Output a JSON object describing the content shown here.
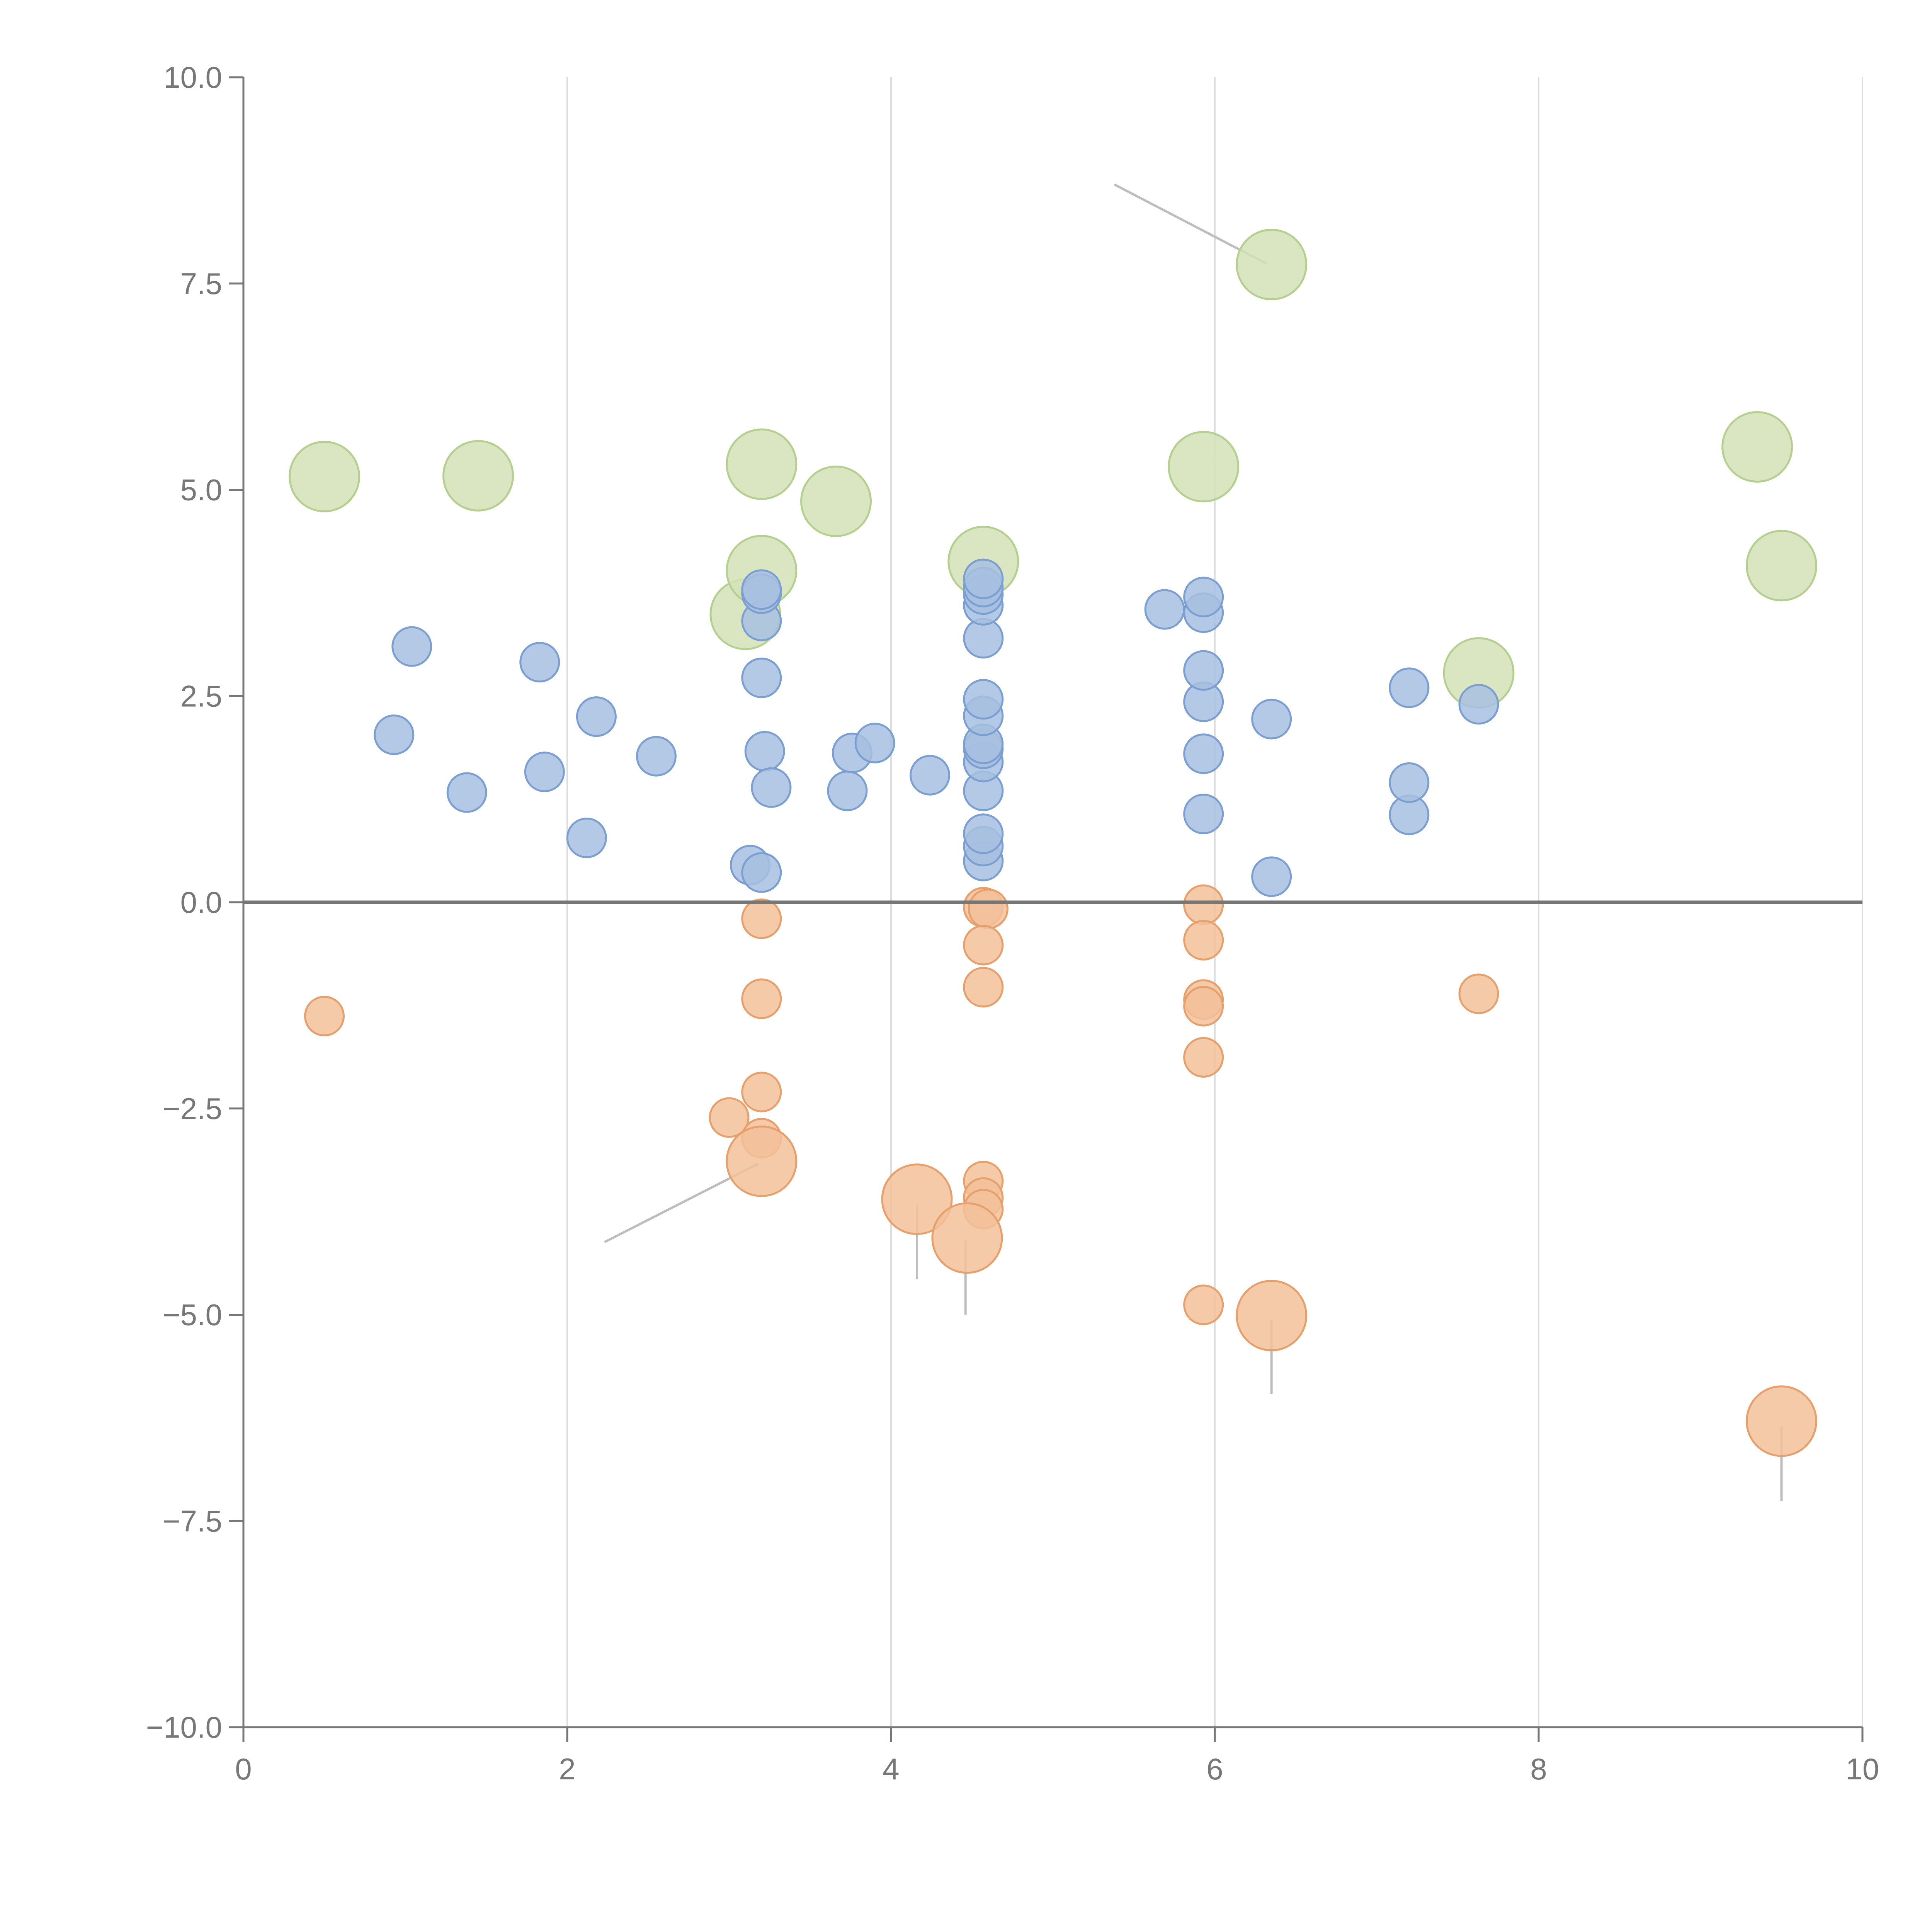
{
  "chart_data": {
    "type": "scatter",
    "title": "",
    "xlabel": "",
    "ylabel": "",
    "xlim": [
      0,
      10
    ],
    "ylim": [
      -10,
      10
    ],
    "grid": {
      "x": true,
      "y": false
    },
    "legend": "none",
    "x_ticks": [
      0,
      2,
      4,
      6,
      8,
      10
    ],
    "x_tick_labels": [
      "0",
      "2",
      "4",
      "6",
      "8",
      "10"
    ],
    "y_ticks": [
      10,
      7.5,
      5,
      2.5,
      0,
      -2.5,
      -5,
      -7.5,
      -10
    ],
    "y_tick_labels": [
      "10.0",
      "7.5",
      "5.0",
      "2.5",
      "0.0",
      "−2.5",
      "−5.0",
      "−7.5",
      "−10.0"
    ],
    "colors": {
      "blue_fill": "#a7bfe0",
      "blue_stroke": "#7c9fd1",
      "orange_fill": "#f2c19a",
      "orange_stroke": "#e6a06b",
      "green_fill": "#d3e2b6",
      "green_stroke": "#b5cf8e",
      "axis": "#777777",
      "grid": "#dddddd"
    },
    "series": [
      {
        "name": "blue",
        "fill": "#a7bfe0",
        "stroke": "#7c9fd1",
        "size": 1,
        "points": [
          [
            0.93,
            2.03
          ],
          [
            1.04,
            3.1
          ],
          [
            1.38,
            1.33
          ],
          [
            1.83,
            2.91
          ],
          [
            1.86,
            1.58
          ],
          [
            2.12,
            0.78
          ],
          [
            2.18,
            2.25
          ],
          [
            2.55,
            1.77
          ],
          [
            3.13,
            0.45
          ],
          [
            3.2,
            0.36
          ],
          [
            3.2,
            2.72
          ],
          [
            3.2,
            3.41
          ],
          [
            3.2,
            3.74
          ],
          [
            3.2,
            3.79
          ],
          [
            3.22,
            1.83
          ],
          [
            3.26,
            1.39
          ],
          [
            3.73,
            1.35
          ],
          [
            3.76,
            1.81
          ],
          [
            3.9,
            1.93
          ],
          [
            4.24,
            1.54
          ],
          [
            4.57,
            0.5
          ],
          [
            4.57,
            0.68
          ],
          [
            4.57,
            0.83
          ],
          [
            4.57,
            1.35
          ],
          [
            4.57,
            1.7
          ],
          [
            4.57,
            1.86
          ],
          [
            4.57,
            1.92
          ],
          [
            4.57,
            2.26
          ],
          [
            4.57,
            2.46
          ],
          [
            4.57,
            3.2
          ],
          [
            4.57,
            3.6
          ],
          [
            4.57,
            3.73
          ],
          [
            4.57,
            3.82
          ],
          [
            4.57,
            3.92
          ],
          [
            5.69,
            3.55
          ],
          [
            5.93,
            1.07
          ],
          [
            5.93,
            1.8
          ],
          [
            5.93,
            2.43
          ],
          [
            5.93,
            2.81
          ],
          [
            5.93,
            3.51
          ],
          [
            5.93,
            3.7
          ],
          [
            6.35,
            0.31
          ],
          [
            6.35,
            2.22
          ],
          [
            7.2,
            1.06
          ],
          [
            7.2,
            1.45
          ],
          [
            7.2,
            2.6
          ],
          [
            7.63,
            2.4
          ]
        ]
      },
      {
        "name": "orange",
        "fill": "#f2c19a",
        "stroke": "#e6a06b",
        "size": 1,
        "points": [
          [
            0.5,
            -1.38
          ],
          [
            3.0,
            -2.61
          ],
          [
            3.2,
            -0.2
          ],
          [
            3.2,
            -1.17
          ],
          [
            3.2,
            -2.3
          ],
          [
            3.2,
            -2.86
          ],
          [
            4.57,
            -0.06
          ],
          [
            4.6,
            -0.08
          ],
          [
            4.57,
            -0.52
          ],
          [
            4.57,
            -1.03
          ],
          [
            4.57,
            -3.38
          ],
          [
            4.57,
            -3.58
          ],
          [
            4.57,
            -3.72
          ],
          [
            5.93,
            -0.03
          ],
          [
            5.93,
            -0.46
          ],
          [
            5.93,
            -1.18
          ],
          [
            5.93,
            -1.26
          ],
          [
            5.93,
            -1.88
          ],
          [
            5.93,
            -4.88
          ],
          [
            7.63,
            -1.11
          ]
        ]
      },
      {
        "name": "orange-large",
        "fill": "#f2c19a",
        "stroke": "#e6a06b",
        "size": 2,
        "points": [
          [
            3.2,
            -3.14
          ],
          [
            4.16,
            -3.6
          ],
          [
            4.47,
            -4.07
          ],
          [
            6.35,
            -5.01
          ],
          [
            9.5,
            -6.29
          ]
        ]
      },
      {
        "name": "green",
        "fill": "#d3e2b6",
        "stroke": "#b5cf8e",
        "size": 2,
        "points": [
          [
            0.5,
            5.16
          ],
          [
            1.45,
            5.17
          ],
          [
            3.1,
            3.49
          ],
          [
            3.2,
            4.02
          ],
          [
            3.2,
            5.31
          ],
          [
            3.66,
            4.86
          ],
          [
            4.57,
            4.13
          ],
          [
            5.93,
            5.28
          ],
          [
            6.35,
            7.73
          ],
          [
            7.63,
            2.78
          ],
          [
            9.35,
            5.52
          ],
          [
            9.5,
            4.08
          ]
        ]
      }
    ],
    "annotation_leaders": [
      {
        "from": [
          5.38,
          8.7
        ],
        "to": [
          6.32,
          7.74
        ],
        "style": "gray"
      },
      {
        "from": [
          2.23,
          -4.12
        ],
        "to": [
          3.18,
          -3.17
        ],
        "style": "gray"
      },
      {
        "from": [
          4.16,
          -3.67
        ],
        "to": [
          4.16,
          -4.57
        ],
        "style": "gray"
      },
      {
        "from": [
          4.46,
          -4.1
        ],
        "to": [
          4.46,
          -5.0
        ],
        "style": "gray"
      },
      {
        "from": [
          6.35,
          -5.06
        ],
        "to": [
          6.35,
          -5.96
        ],
        "style": "gray"
      },
      {
        "from": [
          9.5,
          -6.36
        ],
        "to": [
          9.5,
          -7.26
        ],
        "style": "gray"
      },
      {
        "from": [
          0.52,
          5.22
        ],
        "to": [
          0.6,
          5.6
        ],
        "style": "light"
      },
      {
        "from": [
          1.48,
          5.17
        ],
        "to": [
          1.7,
          5.12
        ],
        "style": "light"
      },
      {
        "from": [
          3.2,
          5.35
        ],
        "to": [
          3.4,
          5.55
        ],
        "style": "light"
      },
      {
        "from": [
          3.7,
          4.84
        ],
        "to": [
          3.95,
          4.7
        ],
        "style": "light"
      },
      {
        "from": [
          4.65,
          4.15
        ],
        "to": [
          4.92,
          4.26
        ],
        "style": "light"
      },
      {
        "from": [
          5.97,
          5.3
        ],
        "to": [
          6.12,
          5.48
        ],
        "style": "light"
      },
      {
        "from": [
          9.35,
          5.58
        ],
        "to": [
          9.33,
          5.88
        ],
        "style": "light"
      },
      {
        "from": [
          7.45,
          2.72
        ],
        "to": [
          7.62,
          2.85
        ],
        "style": "light"
      },
      {
        "from": [
          3.15,
          3.55
        ],
        "to": [
          3.25,
          3.35
        ],
        "style": "light"
      }
    ]
  }
}
